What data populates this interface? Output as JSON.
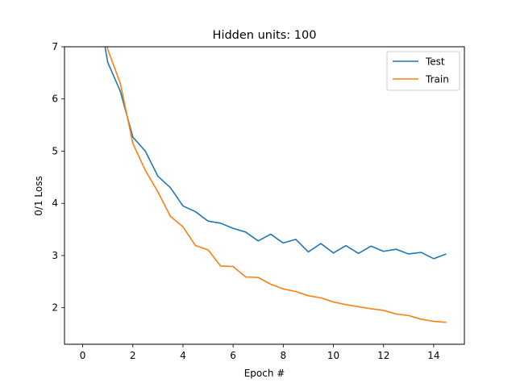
{
  "chart_data": {
    "type": "line",
    "title": "Hidden units: 100",
    "xlabel": "Epoch #",
    "ylabel": "0/1 Loss",
    "xlim": [
      -0.725,
      15.225
    ],
    "ylim": [
      1.3,
      7.0
    ],
    "xticks": [
      0,
      2,
      4,
      6,
      8,
      10,
      12,
      14
    ],
    "yticks": [
      2,
      3,
      4,
      5,
      6,
      7
    ],
    "grid": false,
    "legend_position": "top-right",
    "series": [
      {
        "name": "Test",
        "color": "#1f77b4",
        "x": [
          0.5,
          1.0,
          1.5,
          2.0,
          2.5,
          3.0,
          3.5,
          4.0,
          4.5,
          5.0,
          5.5,
          6.0,
          6.5,
          7.0,
          7.5,
          8.0,
          8.5,
          9.0,
          9.5,
          10.0,
          10.5,
          11.0,
          11.5,
          12.0,
          12.5,
          13.0,
          13.5,
          14.0,
          14.5
        ],
        "y": [
          8.1,
          6.7,
          6.15,
          5.27,
          5.0,
          4.52,
          4.3,
          3.95,
          3.84,
          3.66,
          3.62,
          3.52,
          3.45,
          3.28,
          3.41,
          3.24,
          3.31,
          3.07,
          3.23,
          3.05,
          3.19,
          3.04,
          3.18,
          3.08,
          3.12,
          3.03,
          3.06,
          2.94,
          3.03
        ]
      },
      {
        "name": "Train",
        "color": "#ff7f0e",
        "x": [
          0.5,
          1.0,
          1.5,
          2.0,
          2.5,
          3.0,
          3.5,
          4.0,
          4.5,
          5.0,
          5.5,
          6.0,
          6.5,
          7.0,
          7.5,
          8.0,
          8.5,
          9.0,
          9.5,
          10.0,
          10.5,
          11.0,
          11.5,
          12.0,
          12.5,
          13.0,
          13.5,
          14.0,
          14.5
        ],
        "y": [
          8.3,
          6.95,
          6.3,
          5.15,
          4.63,
          4.22,
          3.75,
          3.55,
          3.19,
          3.11,
          2.8,
          2.79,
          2.59,
          2.58,
          2.45,
          2.36,
          2.31,
          2.23,
          2.19,
          2.11,
          2.06,
          2.02,
          1.98,
          1.95,
          1.88,
          1.85,
          1.78,
          1.74,
          1.72
        ]
      }
    ]
  }
}
